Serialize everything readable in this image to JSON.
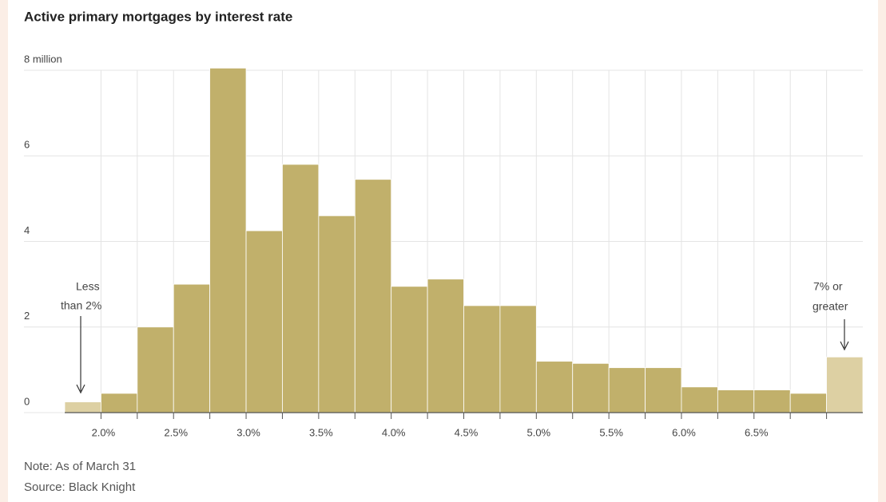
{
  "chart_data": {
    "type": "histogram",
    "title": "Active primary mortgages by interest rate",
    "bins": [
      1.75,
      2.0,
      2.25,
      2.5,
      2.75,
      3.0,
      3.25,
      3.5,
      3.75,
      4.0,
      4.25,
      4.5,
      4.75,
      5.0,
      5.25,
      5.5,
      5.75,
      6.0,
      6.25,
      6.5,
      6.75,
      7.0,
      7.25
    ],
    "counts": [
      0.25,
      0.45,
      2.0,
      3.0,
      8.05,
      4.25,
      5.8,
      4.6,
      5.45,
      2.95,
      3.12,
      2.5,
      2.5,
      1.2,
      1.15,
      1.05,
      1.05,
      0.6,
      0.53,
      0.53,
      0.45,
      1.3
    ],
    "colors": [
      "#ddd0a3",
      "#c1b06b",
      "#c1b06b",
      "#c1b06b",
      "#c1b06b",
      "#c1b06b",
      "#c1b06b",
      "#c1b06b",
      "#c1b06b",
      "#c1b06b",
      "#c1b06b",
      "#c1b06b",
      "#c1b06b",
      "#c1b06b",
      "#c1b06b",
      "#c1b06b",
      "#c1b06b",
      "#c1b06b",
      "#c1b06b",
      "#c1b06b",
      "#c1b06b",
      "#ddd0a3"
    ],
    "xlim": [
      1.75,
      7.25
    ],
    "ylim": [
      0,
      8
    ],
    "yticks": [
      0,
      2,
      4,
      6,
      {
        "value": 8,
        "label": "8 million"
      }
    ],
    "xticks": [
      {
        "value": 2.0,
        "label": "2.0%"
      },
      {
        "value": 2.5,
        "label": "2.5%"
      },
      {
        "value": 3.0,
        "label": "3.0%"
      },
      {
        "value": 3.5,
        "label": "3.5%"
      },
      {
        "value": 4.0,
        "label": "4.0%"
      },
      {
        "value": 4.5,
        "label": "4.5%"
      },
      {
        "value": 5.0,
        "label": "5.0%"
      },
      {
        "value": 5.5,
        "label": "5.5%"
      },
      {
        "value": 6.0,
        "label": "6.0%"
      },
      {
        "value": 6.5,
        "label": "6.5%"
      }
    ],
    "grid": true,
    "annotations": [
      {
        "lines": [
          "Less",
          "than 2%"
        ]
      },
      {
        "lines": [
          "7% or",
          "greater"
        ]
      }
    ],
    "notes": [
      "Note: As of March 31",
      "Source: Black Knight"
    ]
  }
}
